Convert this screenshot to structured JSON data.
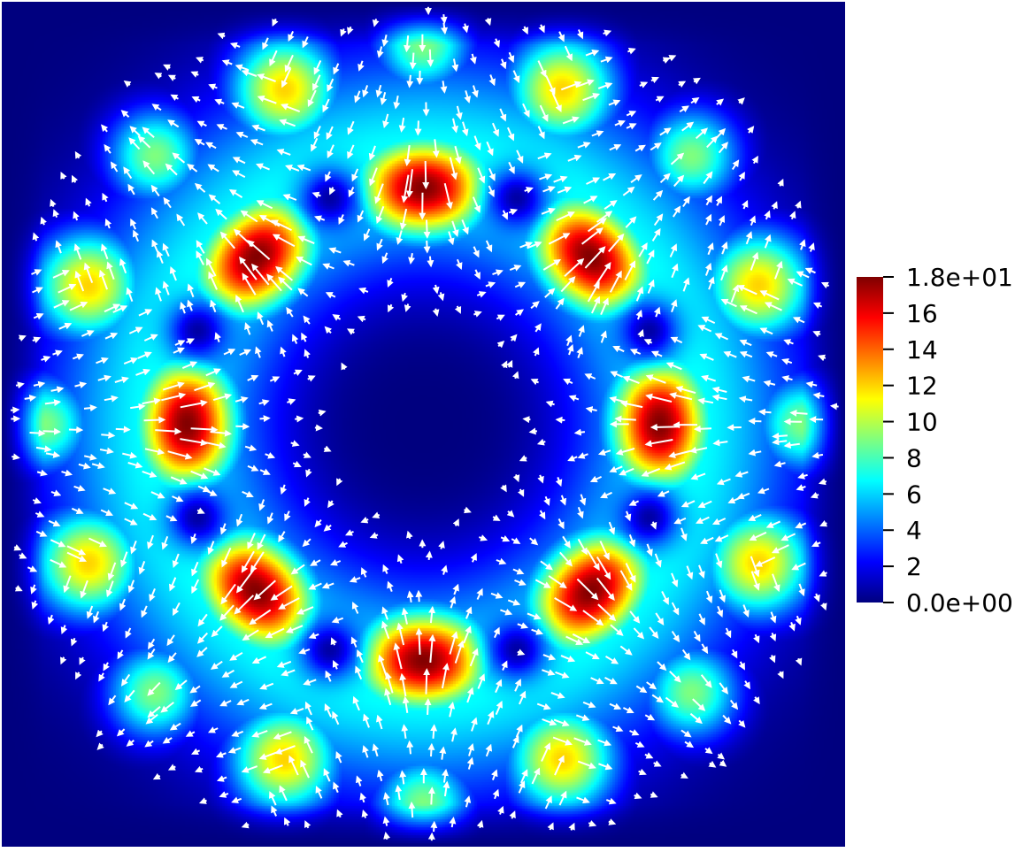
{
  "chart_data": {
    "type": "heatmap",
    "description_of_field": "velocity magnitude with white glyph arrows",
    "colormap": {
      "name": "jet",
      "stops": [
        "#00007f",
        "#0000ff",
        "#007fff",
        "#00ffff",
        "#7fff7f",
        "#ffff00",
        "#ff7f00",
        "#ff0000",
        "#7f0000"
      ]
    },
    "background_color": "#ffffff",
    "arrow_color": "#ffffff",
    "colorbar": {
      "range": [
        0,
        18
      ],
      "ticks": [
        {
          "value": 18,
          "label": "1.8e+01"
        },
        {
          "value": 16,
          "label": "16"
        },
        {
          "value": 14,
          "label": "14"
        },
        {
          "value": 12,
          "label": "12"
        },
        {
          "value": 10,
          "label": "10"
        },
        {
          "value": 8,
          "label": "8"
        },
        {
          "value": 6,
          "label": "6"
        },
        {
          "value": 4,
          "label": "4"
        },
        {
          "value": 2,
          "label": "2"
        },
        {
          "value": 0,
          "label": "0.0e+00"
        }
      ]
    },
    "field": {
      "max_value": 18,
      "high_lobes": [
        {
          "angle_deg": 90,
          "peak": 18,
          "flow": "inward"
        },
        {
          "angle_deg": 270,
          "peak": 18,
          "flow": "inward"
        },
        {
          "angle_deg": 0,
          "peak": 18,
          "flow": "inward"
        },
        {
          "angle_deg": 180,
          "peak": 18,
          "flow": "inward"
        },
        {
          "angle_deg": 45,
          "peak": 18,
          "flow": "outward"
        },
        {
          "angle_deg": 135,
          "peak": 18,
          "flow": "outward"
        },
        {
          "angle_deg": 225,
          "peak": 18,
          "flow": "outward"
        },
        {
          "angle_deg": 315,
          "peak": 18,
          "flow": "outward"
        }
      ],
      "outer_ring_peak": 12,
      "center_value": 0,
      "edge_value": 0
    }
  }
}
